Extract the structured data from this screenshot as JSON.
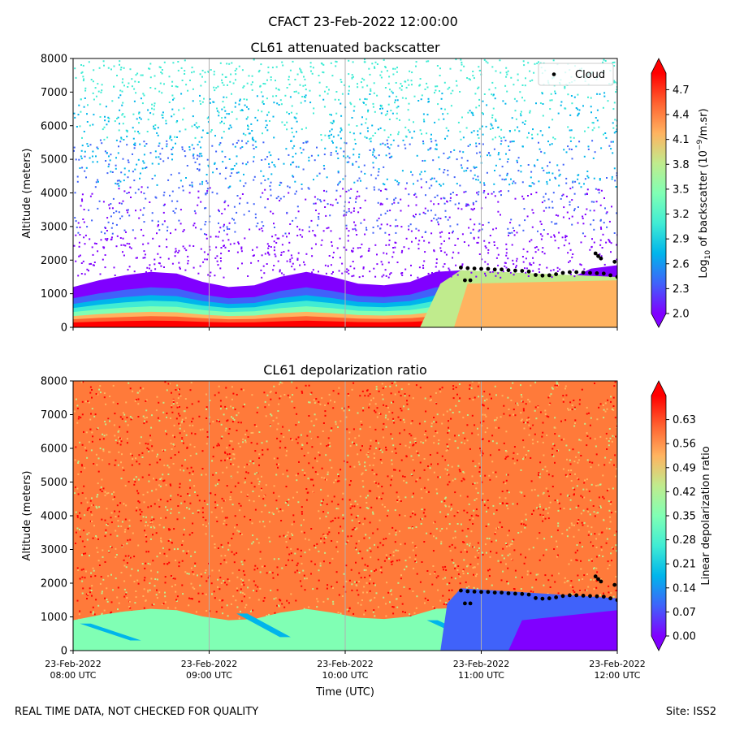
{
  "figure_title": "CFACT 23-Feb-2022 12:00:00",
  "footer_left": "REAL TIME DATA, NOT CHECKED FOR QUALITY",
  "footer_right": "Site: ISS2",
  "colors": {
    "rainbow": [
      "#8000ff",
      "#4062fa",
      "#00b5eb",
      "#40ecd4",
      "#80ffb4",
      "#c0eb8d",
      "#ffb360",
      "#ff6230",
      "#ff0000"
    ],
    "cloud": "#000000",
    "grid": "#b0b0b0"
  },
  "chart_data": [
    {
      "type": "heatmap",
      "title": "CL61 attenuated backscatter",
      "ylabel": "Altitude (meters)",
      "xlabel": "",
      "x_ticks": [],
      "ylim": [
        0,
        8000
      ],
      "y_ticks": [
        "0",
        "1000",
        "2000",
        "3000",
        "4000",
        "5000",
        "6000",
        "7000",
        "8000"
      ],
      "colorbar": {
        "label_prefix": "Log",
        "label_sub": "10",
        "label_mid": " of backscatter (10",
        "label_sup": "−9",
        "label_suffix": "/m.sr)",
        "range": [
          2.0,
          4.9
        ],
        "ticks": [
          "2.0",
          "2.3",
          "2.6",
          "2.9",
          "3.2",
          "3.5",
          "3.8",
          "4.1",
          "4.4",
          "4.7"
        ]
      },
      "legend": {
        "label": "Cloud",
        "position": "upper-right"
      },
      "cloud_base_m": [
        {
          "time_h": 10.85,
          "alt": 1780
        },
        {
          "time_h": 10.9,
          "alt": 1760
        },
        {
          "time_h": 10.95,
          "alt": 1750
        },
        {
          "time_h": 11.0,
          "alt": 1740
        },
        {
          "time_h": 11.05,
          "alt": 1740
        },
        {
          "time_h": 11.1,
          "alt": 1720
        },
        {
          "time_h": 11.15,
          "alt": 1720
        },
        {
          "time_h": 11.2,
          "alt": 1700
        },
        {
          "time_h": 11.25,
          "alt": 1690
        },
        {
          "time_h": 11.3,
          "alt": 1680
        },
        {
          "time_h": 11.35,
          "alt": 1660
        },
        {
          "time_h": 11.4,
          "alt": 1560
        },
        {
          "time_h": 11.45,
          "alt": 1540
        },
        {
          "time_h": 11.5,
          "alt": 1550
        },
        {
          "time_h": 11.55,
          "alt": 1580
        },
        {
          "time_h": 11.6,
          "alt": 1620
        },
        {
          "time_h": 11.65,
          "alt": 1640
        },
        {
          "time_h": 11.7,
          "alt": 1640
        },
        {
          "time_h": 11.75,
          "alt": 1630
        },
        {
          "time_h": 11.8,
          "alt": 1620
        },
        {
          "time_h": 11.85,
          "alt": 1610
        },
        {
          "time_h": 11.9,
          "alt": 1600
        },
        {
          "time_h": 11.95,
          "alt": 1550
        },
        {
          "time_h": 12.0,
          "alt": 1500
        },
        {
          "time_h": 10.88,
          "alt": 1400
        },
        {
          "time_h": 10.92,
          "alt": 1400
        },
        {
          "time_h": 11.84,
          "alt": 2200
        },
        {
          "time_h": 11.86,
          "alt": 2120
        },
        {
          "time_h": 11.88,
          "alt": 2050
        },
        {
          "time_h": 11.98,
          "alt": 1950
        }
      ],
      "aerosol_top_m": [
        1200,
        1400,
        1550,
        1650,
        1600,
        1350,
        1200,
        1250,
        1500,
        1650,
        1500,
        1300,
        1250,
        1350,
        1650,
        1700,
        1600,
        1400,
        1300,
        1400,
        1750,
        1850
      ]
    },
    {
      "type": "heatmap",
      "title": "CL61 depolarization ratio",
      "ylabel": "Altitude (meters)",
      "xlabel": "Time (UTC)",
      "ylim": [
        0,
        8000
      ],
      "y_ticks": [
        "0",
        "1000",
        "2000",
        "3000",
        "4000",
        "5000",
        "6000",
        "7000",
        "8000"
      ],
      "x_range_h": [
        8,
        12
      ],
      "x_ticks": [
        {
          "t": 8,
          "line1": "23-Feb-2022",
          "line2": "08:00 UTC"
        },
        {
          "t": 9,
          "line1": "23-Feb-2022",
          "line2": "09:00 UTC"
        },
        {
          "t": 10,
          "line1": "23-Feb-2022",
          "line2": "10:00 UTC"
        },
        {
          "t": 11,
          "line1": "23-Feb-2022",
          "line2": "11:00 UTC"
        },
        {
          "t": 12,
          "line1": "23-Feb-2022",
          "line2": "12:00 UTC"
        }
      ],
      "colorbar": {
        "label": "Linear depolarization ratio",
        "range": [
          0.0,
          0.7
        ],
        "ticks": [
          "0.00",
          "0.07",
          "0.14",
          "0.21",
          "0.28",
          "0.35",
          "0.42",
          "0.49",
          "0.56",
          "0.63"
        ]
      }
    }
  ]
}
